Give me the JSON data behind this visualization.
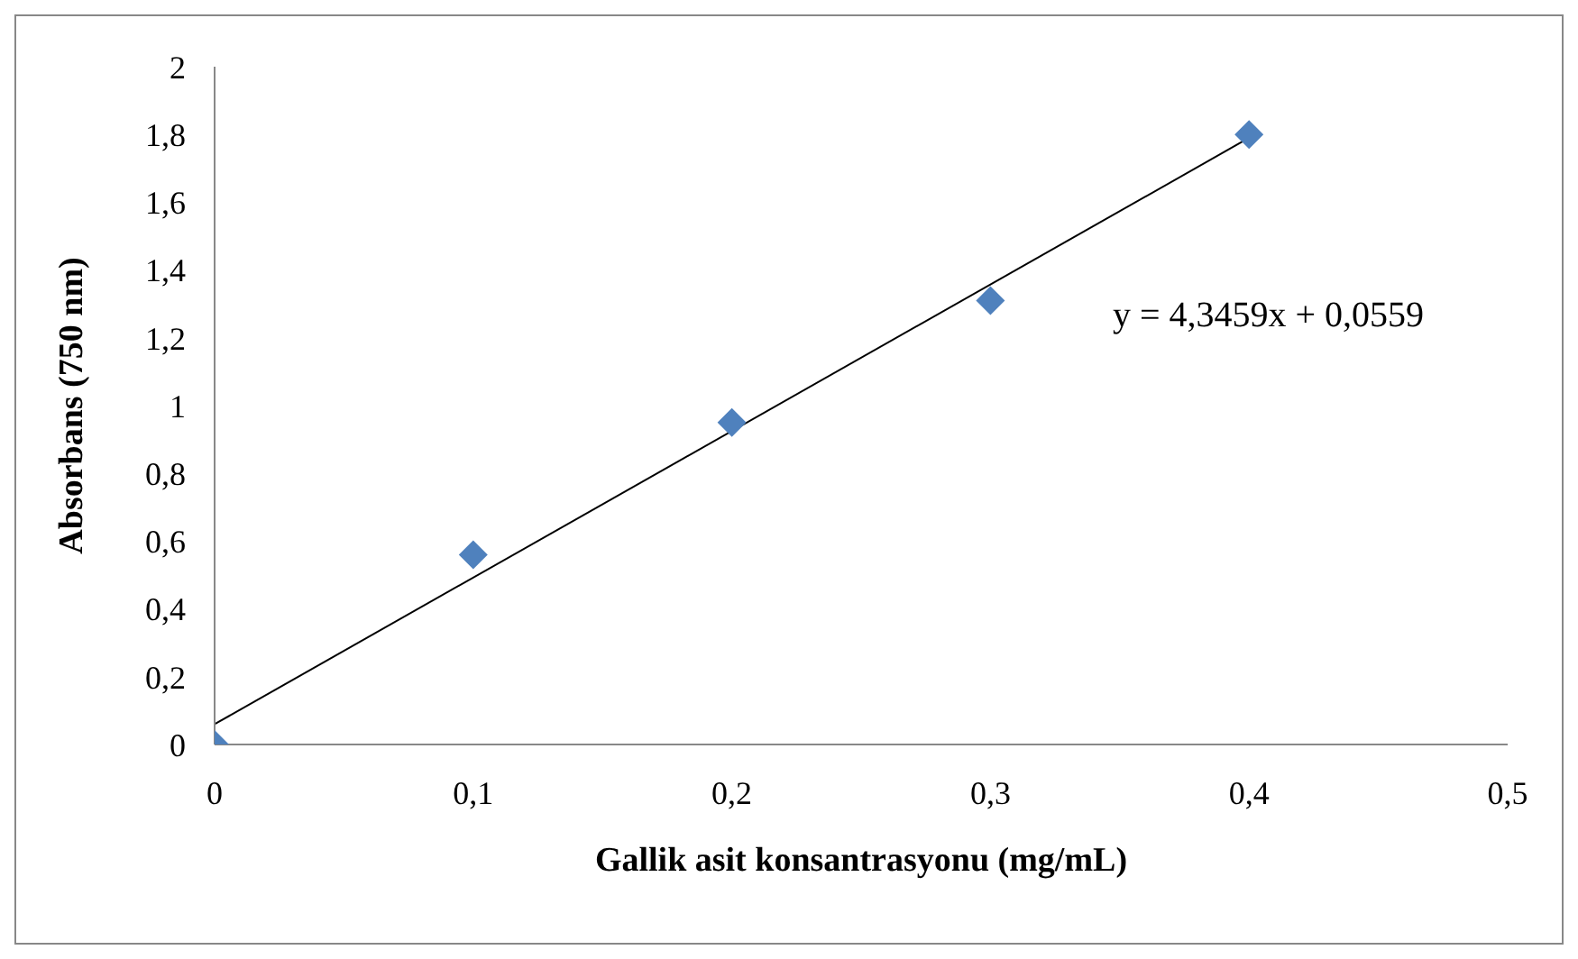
{
  "chart_data": {
    "type": "scatter",
    "xlabel": "Gallik asit konsantrasyonu (mg/mL)",
    "ylabel": "Absorbans (750 nm)",
    "x": [
      0,
      0.1,
      0.2,
      0.3,
      0.4
    ],
    "series": [
      {
        "color": "#4f81bd",
        "marker": "diamond",
        "values": [
          0,
          0.56,
          0.95,
          1.31,
          1.8
        ]
      },
      {
        "type": "line",
        "color": "#000000",
        "marker": "none",
        "x": [
          0,
          0.4
        ],
        "values": [
          0.06,
          1.79
        ]
      }
    ],
    "annotations": [
      "y = 4,3459x + 0,0559"
    ],
    "xlim": [
      0,
      0.5
    ],
    "ylim": [
      0,
      2
    ],
    "xticks": [
      {
        "value": 0,
        "label": "0"
      },
      {
        "value": 0.1,
        "label": "0,1"
      },
      {
        "value": 0.2,
        "label": "0,2"
      },
      {
        "value": 0.3,
        "label": "0,3"
      },
      {
        "value": 0.4,
        "label": "0,4"
      },
      {
        "value": 0.5,
        "label": "0,5"
      }
    ],
    "yticks": [
      {
        "value": 0,
        "label": "0"
      },
      {
        "value": 0.2,
        "label": "0,2"
      },
      {
        "value": 0.4,
        "label": "0,4"
      },
      {
        "value": 0.6,
        "label": "0,6"
      },
      {
        "value": 0.8,
        "label": "0,8"
      },
      {
        "value": 1,
        "label": "1"
      },
      {
        "value": 1.2,
        "label": "1,2"
      },
      {
        "value": 1.4,
        "label": "1,4"
      },
      {
        "value": 1.6,
        "label": "1,6"
      },
      {
        "value": 1.8,
        "label": "1,8"
      },
      {
        "value": 2,
        "label": "2"
      }
    ],
    "grid": false,
    "legend": false
  }
}
